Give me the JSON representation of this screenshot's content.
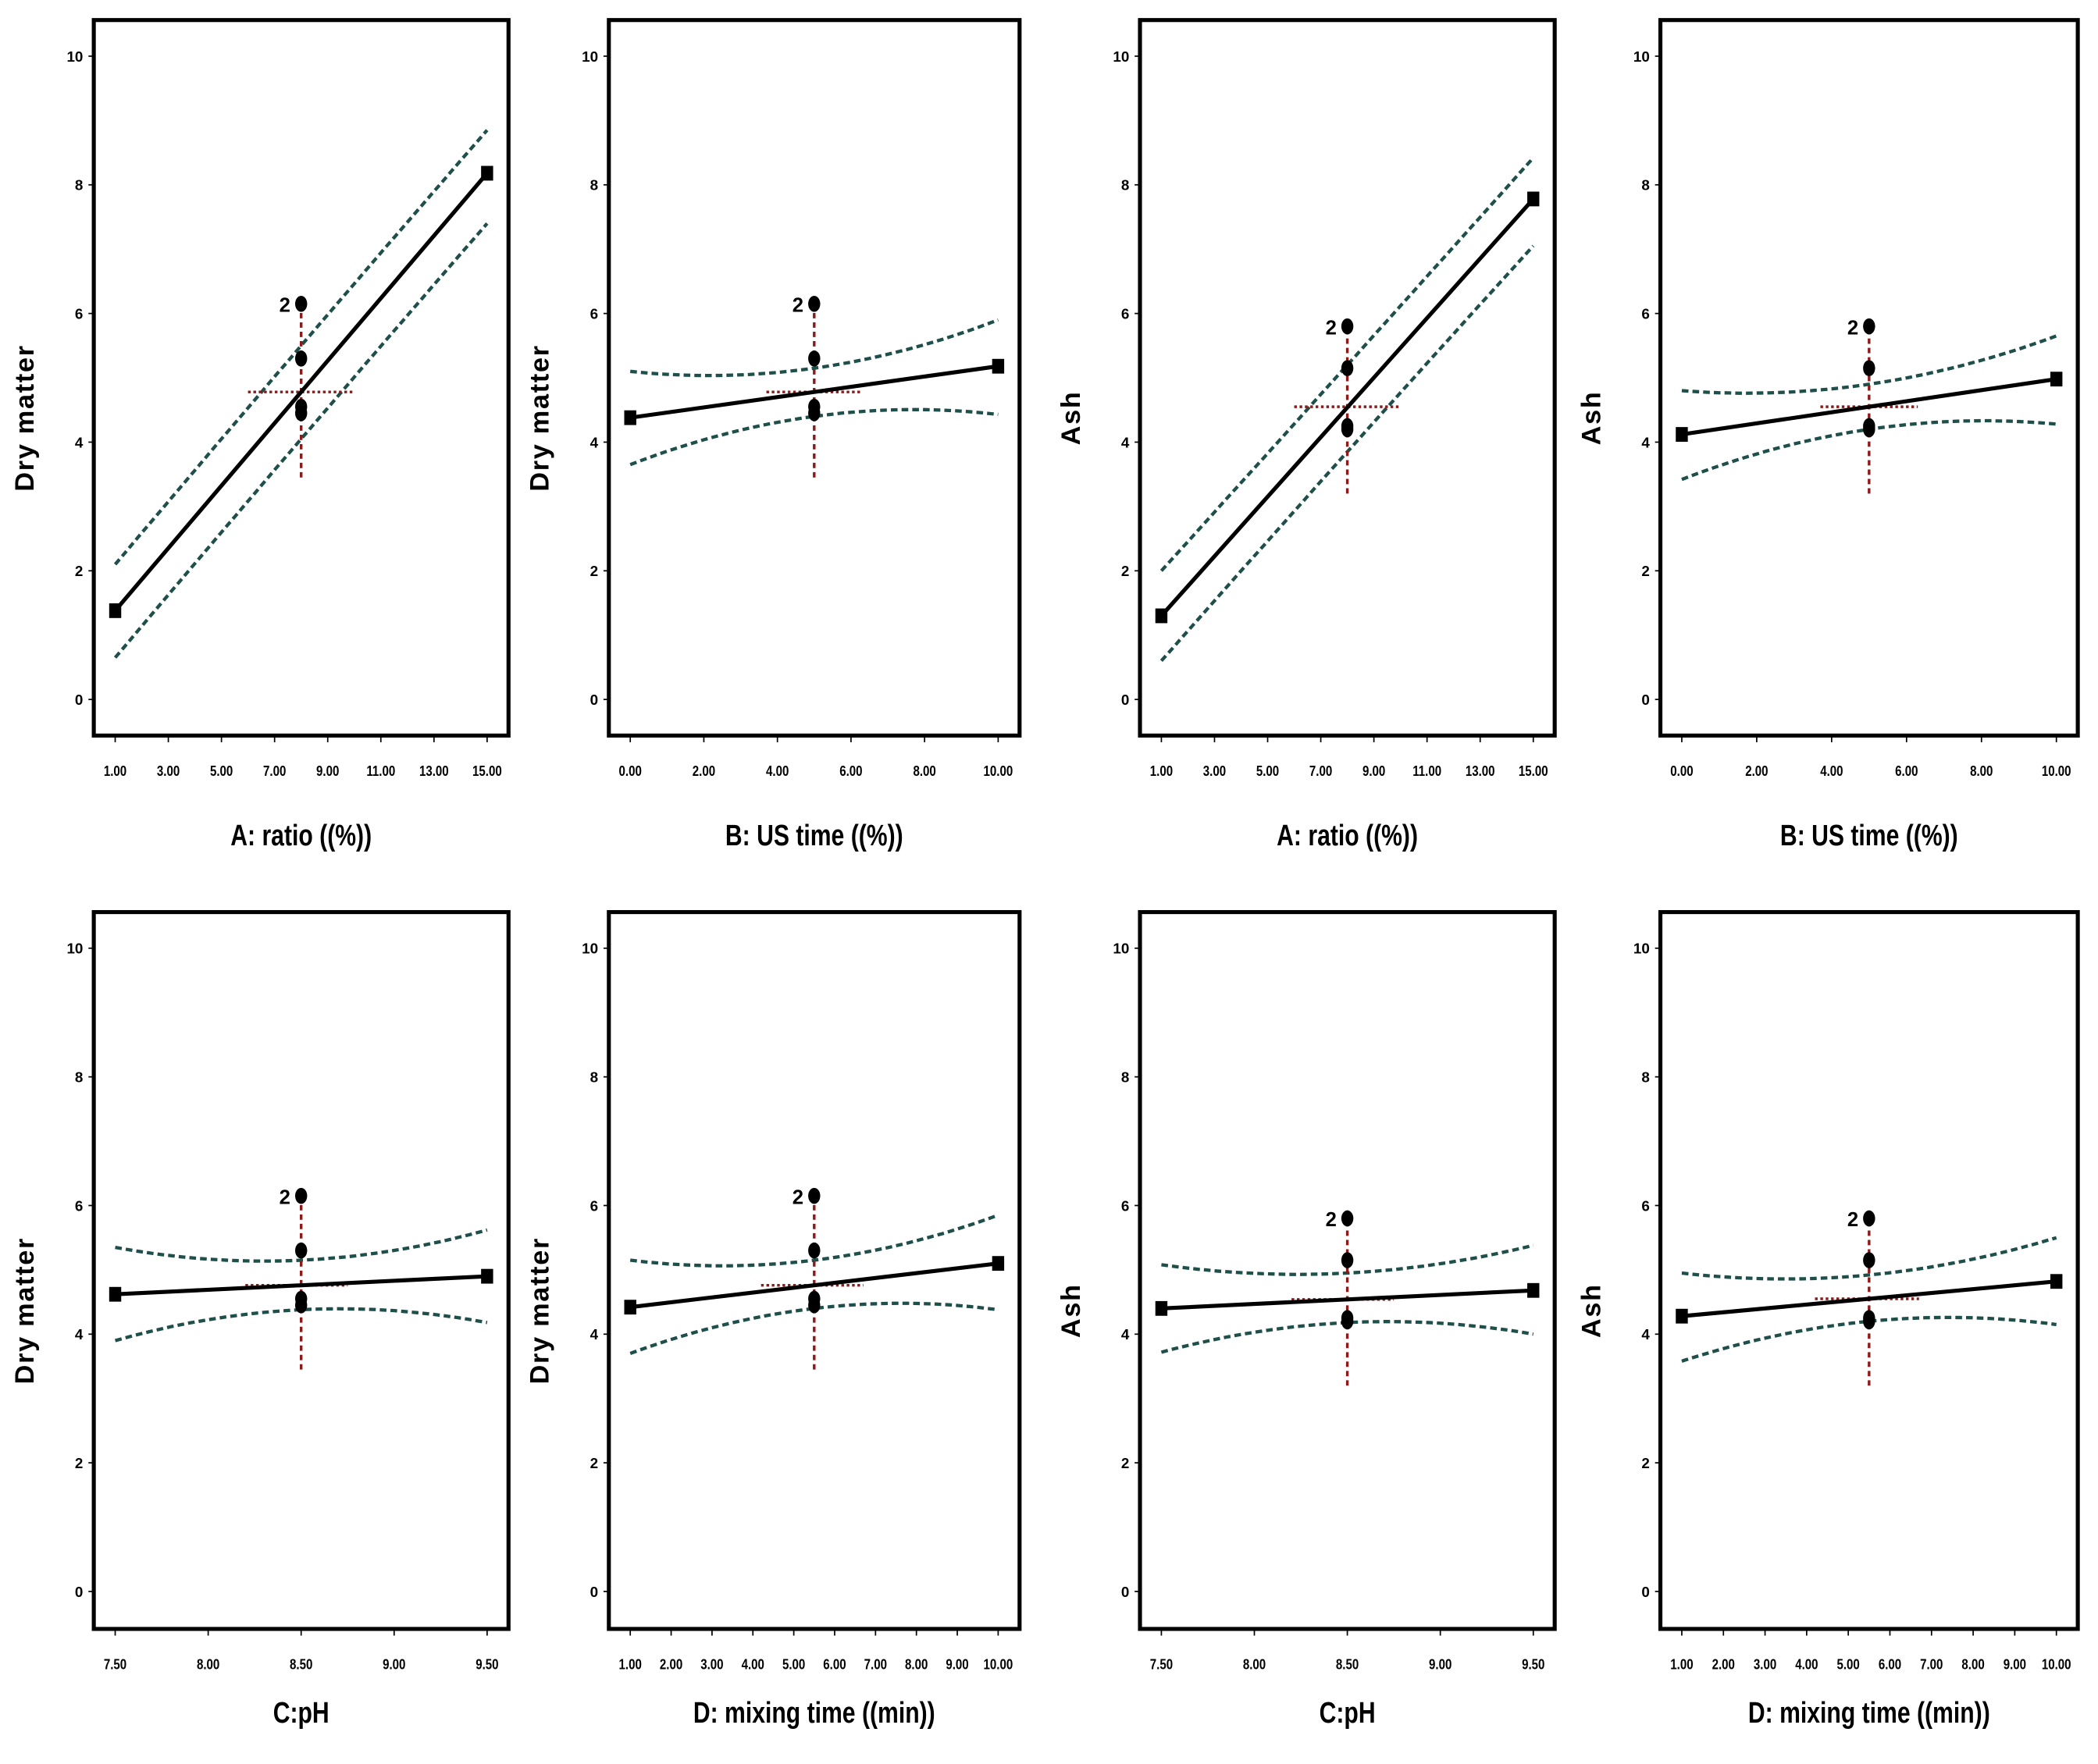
{
  "chart_data": [
    {
      "type": "line",
      "ylabel": "Dry matter",
      "xlabel": "A: ratio ((%))",
      "x_ticks": [
        "1.00",
        "3.00",
        "5.00",
        "7.00",
        "9.00",
        "11.00",
        "13.00",
        "15.00"
      ],
      "xlim": [
        1,
        15
      ],
      "ylim": [
        0,
        10
      ],
      "y_ticks": [
        "0",
        "2",
        "4",
        "6",
        "8",
        "10"
      ],
      "prediction": [
        [
          1,
          1.38
        ],
        [
          15,
          8.18
        ]
      ],
      "ci_upper": [
        [
          1,
          2.1
        ],
        [
          8,
          5.5
        ],
        [
          15,
          8.85
        ]
      ],
      "ci_lower": [
        [
          1,
          0.65
        ],
        [
          8,
          4.05
        ],
        [
          15,
          7.4
        ]
      ],
      "design_points": {
        "x": 8,
        "y": [
          6.15,
          5.3,
          4.55,
          4.45
        ],
        "replicate_label": "2"
      },
      "center": {
        "x": 8,
        "y": 4.78,
        "x_span": [
          6,
          10
        ],
        "y_span": [
          3.45,
          6.15
        ]
      }
    },
    {
      "type": "line",
      "ylabel": "Dry matter",
      "xlabel": "B: US time ((%))",
      "x_ticks": [
        "0.00",
        "2.00",
        "4.00",
        "6.00",
        "8.00",
        "10.00"
      ],
      "xlim": [
        0,
        10
      ],
      "ylim": [
        0,
        10
      ],
      "y_ticks": [
        "0",
        "2",
        "4",
        "6",
        "8",
        "10"
      ],
      "prediction": [
        [
          0,
          4.38
        ],
        [
          10,
          5.18
        ]
      ],
      "ci_upper": [
        [
          0,
          5.1
        ],
        [
          5,
          5.15
        ],
        [
          10,
          5.9
        ]
      ],
      "ci_lower": [
        [
          0,
          3.65
        ],
        [
          5,
          4.4
        ],
        [
          10,
          4.43
        ]
      ],
      "design_points": {
        "x": 5,
        "y": [
          6.15,
          5.3,
          4.55,
          4.45
        ],
        "replicate_label": "2"
      },
      "center": {
        "x": 5,
        "y": 4.78,
        "x_span": [
          3.7,
          6.3
        ],
        "y_span": [
          3.45,
          6.15
        ]
      }
    },
    {
      "type": "line",
      "ylabel": "Ash",
      "xlabel": "A: ratio ((%))",
      "x_ticks": [
        "1.00",
        "3.00",
        "5.00",
        "7.00",
        "9.00",
        "11.00",
        "13.00",
        "15.00"
      ],
      "xlim": [
        1,
        15
      ],
      "ylim": [
        0,
        10
      ],
      "y_ticks": [
        "0",
        "2",
        "4",
        "6",
        "8",
        "10"
      ],
      "prediction": [
        [
          1,
          1.3
        ],
        [
          15,
          7.78
        ]
      ],
      "ci_upper": [
        [
          1,
          2.0
        ],
        [
          8,
          5.2
        ],
        [
          15,
          8.42
        ]
      ],
      "ci_lower": [
        [
          1,
          0.6
        ],
        [
          8,
          3.85
        ],
        [
          15,
          7.05
        ]
      ],
      "design_points": {
        "x": 8,
        "y": [
          5.8,
          5.15,
          4.25,
          4.2
        ],
        "replicate_label": "2"
      },
      "center": {
        "x": 8,
        "y": 4.55,
        "x_span": [
          6,
          10
        ],
        "y_span": [
          3.2,
          5.8
        ]
      }
    },
    {
      "type": "line",
      "ylabel": "Ash",
      "xlabel": "B: US time ((%))",
      "x_ticks": [
        "0.00",
        "2.00",
        "4.00",
        "6.00",
        "8.00",
        "10.00"
      ],
      "xlim": [
        0,
        10
      ],
      "ylim": [
        0,
        10
      ],
      "y_ticks": [
        "0",
        "2",
        "4",
        "6",
        "8",
        "10"
      ],
      "prediction": [
        [
          0,
          4.12
        ],
        [
          10,
          4.98
        ]
      ],
      "ci_upper": [
        [
          0,
          4.8
        ],
        [
          5,
          4.9
        ],
        [
          10,
          5.65
        ]
      ],
      "ci_lower": [
        [
          0,
          3.42
        ],
        [
          5,
          4.2
        ],
        [
          10,
          4.28
        ]
      ],
      "design_points": {
        "x": 5,
        "y": [
          5.8,
          5.15,
          4.25,
          4.2
        ],
        "replicate_label": "2"
      },
      "center": {
        "x": 5,
        "y": 4.55,
        "x_span": [
          3.7,
          6.3
        ],
        "y_span": [
          3.2,
          5.8
        ]
      }
    },
    {
      "type": "line",
      "ylabel": "Dry matter",
      "xlabel": "C:pH",
      "x_ticks": [
        "7.50",
        "8.00",
        "8.50",
        "9.00",
        "9.50"
      ],
      "xlim": [
        7.5,
        9.5
      ],
      "ylim": [
        0,
        10
      ],
      "y_ticks": [
        "0",
        "2",
        "4",
        "6",
        "8",
        "10"
      ],
      "prediction": [
        [
          7.5,
          4.62
        ],
        [
          9.5,
          4.9
        ]
      ],
      "ci_upper": [
        [
          7.5,
          5.35
        ],
        [
          8.5,
          5.15
        ],
        [
          9.5,
          5.62
        ]
      ],
      "ci_lower": [
        [
          7.5,
          3.9
        ],
        [
          8.5,
          4.38
        ],
        [
          9.5,
          4.18
        ]
      ],
      "design_points": {
        "x": 8.5,
        "y": [
          6.15,
          5.3,
          4.55,
          4.45
        ],
        "replicate_label": "2"
      },
      "center": {
        "x": 8.5,
        "y": 4.76,
        "x_span": [
          8.2,
          8.75
        ],
        "y_span": [
          3.45,
          6.15
        ]
      }
    },
    {
      "type": "line",
      "ylabel": "Dry matter",
      "xlabel": "D: mixing time ((min))",
      "x_ticks": [
        "1.00",
        "2.00",
        "3.00",
        "4.00",
        "5.00",
        "6.00",
        "7.00",
        "8.00",
        "9.00",
        "10.00"
      ],
      "xlim": [
        1,
        10
      ],
      "ylim": [
        0,
        10
      ],
      "y_ticks": [
        "0",
        "2",
        "4",
        "6",
        "8",
        "10"
      ],
      "prediction": [
        [
          1,
          4.42
        ],
        [
          10,
          5.1
        ]
      ],
      "ci_upper": [
        [
          1,
          5.15
        ],
        [
          5.5,
          5.15
        ],
        [
          10,
          5.85
        ]
      ],
      "ci_lower": [
        [
          1,
          3.7
        ],
        [
          5.5,
          4.4
        ],
        [
          10,
          4.38
        ]
      ],
      "design_points": {
        "x": 5.5,
        "y": [
          6.15,
          5.3,
          4.55,
          4.45
        ],
        "replicate_label": "2"
      },
      "center": {
        "x": 5.5,
        "y": 4.76,
        "x_span": [
          4.2,
          6.7
        ],
        "y_span": [
          3.45,
          6.15
        ]
      }
    },
    {
      "type": "line",
      "ylabel": "Ash",
      "xlabel": "C:pH",
      "x_ticks": [
        "7.50",
        "8.00",
        "8.50",
        "9.00",
        "9.50"
      ],
      "xlim": [
        7.5,
        9.5
      ],
      "ylim": [
        0,
        10
      ],
      "y_ticks": [
        "0",
        "2",
        "4",
        "6",
        "8",
        "10"
      ],
      "prediction": [
        [
          7.5,
          4.4
        ],
        [
          9.5,
          4.68
        ]
      ],
      "ci_upper": [
        [
          7.5,
          5.08
        ],
        [
          8.5,
          4.95
        ],
        [
          9.5,
          5.38
        ]
      ],
      "ci_lower": [
        [
          7.5,
          3.72
        ],
        [
          8.5,
          4.18
        ],
        [
          9.5,
          4.0
        ]
      ],
      "design_points": {
        "x": 8.5,
        "y": [
          5.8,
          5.15,
          4.25,
          4.2
        ],
        "replicate_label": "2"
      },
      "center": {
        "x": 8.5,
        "y": 4.54,
        "x_span": [
          8.2,
          8.75
        ],
        "y_span": [
          3.2,
          5.8
        ]
      }
    },
    {
      "type": "line",
      "ylabel": "Ash",
      "xlabel": "D: mixing time ((min))",
      "x_ticks": [
        "1.00",
        "2.00",
        "3.00",
        "4.00",
        "5.00",
        "6.00",
        "7.00",
        "8.00",
        "9.00",
        "10.00"
      ],
      "xlim": [
        1,
        10
      ],
      "ylim": [
        0,
        10
      ],
      "y_ticks": [
        "0",
        "2",
        "4",
        "6",
        "8",
        "10"
      ],
      "prediction": [
        [
          1,
          4.28
        ],
        [
          10,
          4.82
        ]
      ],
      "ci_upper": [
        [
          1,
          4.95
        ],
        [
          5.5,
          4.92
        ],
        [
          10,
          5.5
        ]
      ],
      "ci_lower": [
        [
          1,
          3.58
        ],
        [
          5.5,
          4.2
        ],
        [
          10,
          4.15
        ]
      ],
      "design_points": {
        "x": 5.5,
        "y": [
          5.8,
          5.15,
          4.25,
          4.2
        ],
        "replicate_label": "2"
      },
      "center": {
        "x": 5.5,
        "y": 4.55,
        "x_span": [
          4.2,
          6.7
        ],
        "y_span": [
          3.2,
          5.8
        ]
      }
    }
  ],
  "colors": {
    "prediction": "#000000",
    "ci": "#1f4f4a",
    "center": "#8b1a1a",
    "frame": "#000000"
  }
}
